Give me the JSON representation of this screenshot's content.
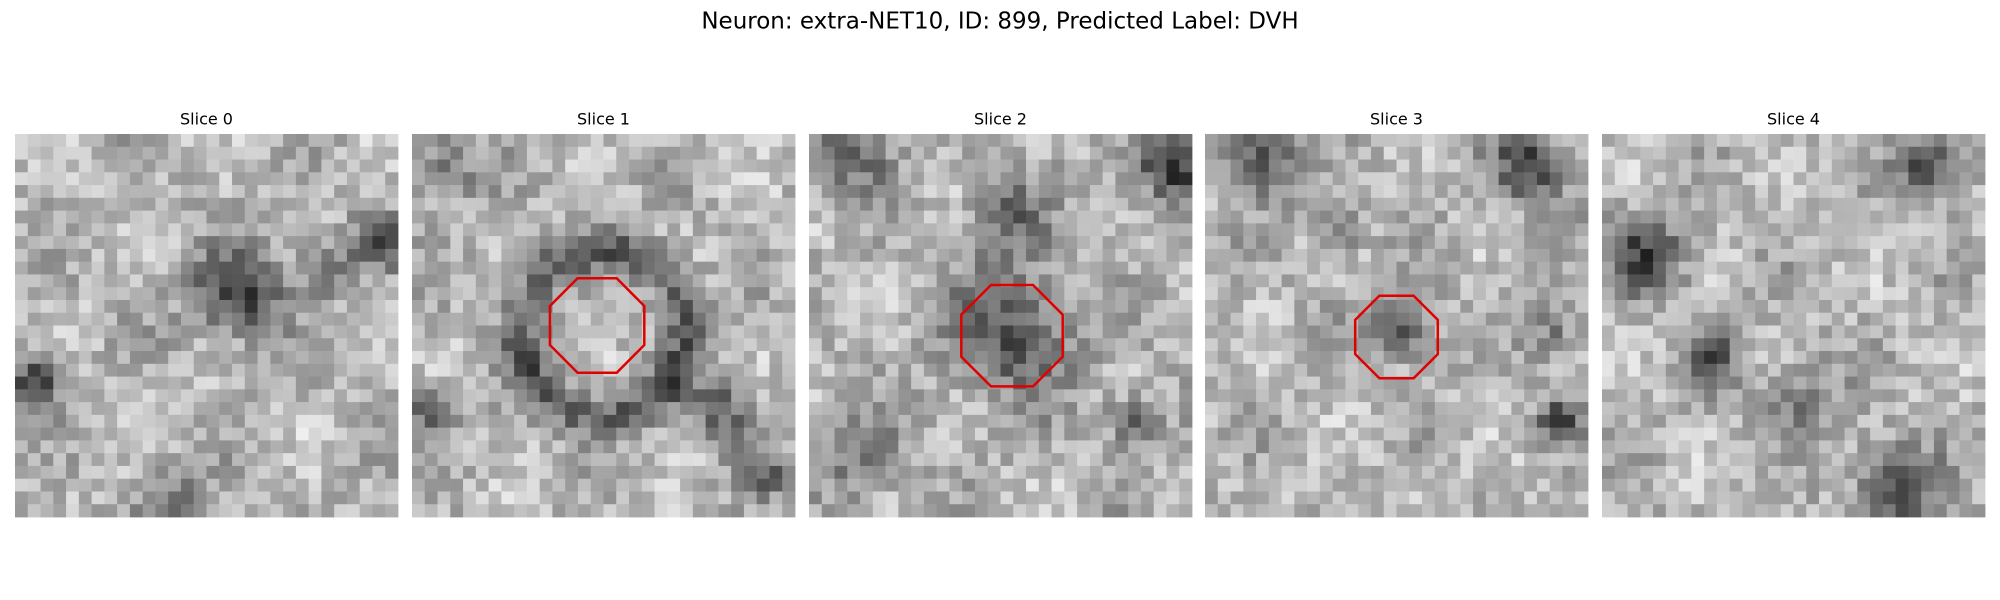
{
  "title": "Neuron: extra-NET10, ID: 899, Predicted Label: DVH",
  "panels": [
    {
      "title": "Slice 0"
    },
    {
      "title": "Slice 1"
    },
    {
      "title": "Slice 2"
    },
    {
      "title": "Slice 3"
    },
    {
      "title": "Slice 4"
    }
  ]
}
